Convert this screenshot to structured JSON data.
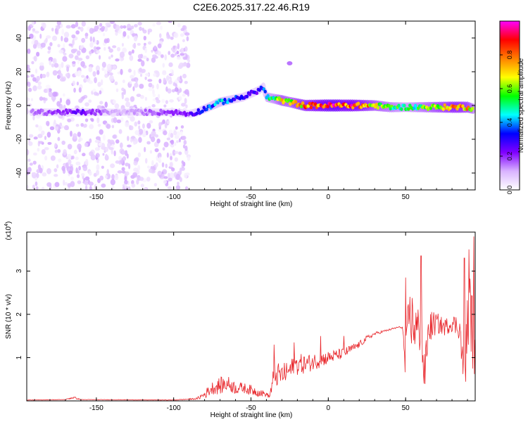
{
  "figure": {
    "title": "C2E6.2025.317.22.46.R19"
  },
  "chart_data": [
    {
      "type": "heatmap",
      "xlabel": "Height of straight line (km)",
      "ylabel": "Frequency (Hz)",
      "xlim": [
        -195,
        95
      ],
      "ylim": [
        -50,
        50
      ],
      "xticks": [
        -150,
        -100,
        -50,
        0,
        50
      ],
      "yticks": [
        -40,
        -20,
        0,
        20,
        40
      ],
      "colorbar": {
        "label": "Normalized spectral amplitude",
        "range": [
          0,
          1
        ],
        "ticks": [
          0.0,
          0.2,
          0.4,
          0.6,
          0.8
        ],
        "colormap": [
          "#ffffff",
          "#d9b3ff",
          "#8000ff",
          "#0000ff",
          "#00ffff",
          "#00ff00",
          "#ffff00",
          "#ff8000",
          "#ff0000",
          "#ff00ff"
        ]
      },
      "ridge": {
        "x": [
          -192,
          -175,
          -160,
          -150,
          -140,
          -130,
          -120,
          -110,
          -100,
          -90,
          -85,
          -80,
          -75,
          -70,
          -65,
          -60,
          -55,
          -50,
          -45,
          -42,
          -40,
          -35,
          -30,
          -25,
          -20,
          -15,
          -10,
          -5,
          0,
          5,
          10,
          15,
          20,
          30,
          40,
          45,
          50,
          55,
          60,
          65,
          70,
          75,
          80,
          85,
          90,
          94
        ],
        "frequency": [
          -4,
          -4,
          -4,
          -4,
          -4,
          -4,
          -4,
          -4,
          -4,
          -5,
          -4,
          -2,
          0,
          2,
          3,
          4,
          5,
          7,
          9,
          11,
          5,
          4,
          3,
          2,
          1,
          0,
          0,
          0,
          0,
          0,
          0,
          0,
          0,
          0,
          -1,
          -1,
          -1,
          -1,
          -1,
          -1,
          -1,
          -1,
          -1,
          -1,
          -1,
          -2
        ],
        "amplitude": [
          0.15,
          0.2,
          0.25,
          0.2,
          0.12,
          0.12,
          0.15,
          0.18,
          0.2,
          0.22,
          0.3,
          0.35,
          0.4,
          0.45,
          0.4,
          0.35,
          0.35,
          0.3,
          0.3,
          0.35,
          0.5,
          0.55,
          0.7,
          0.65,
          0.75,
          0.8,
          0.85,
          0.9,
          0.95,
          0.95,
          0.9,
          0.9,
          0.85,
          0.7,
          0.6,
          0.55,
          0.5,
          0.55,
          0.6,
          0.65,
          0.7,
          0.75,
          0.8,
          0.8,
          0.75,
          0.6
        ]
      },
      "noise_region": {
        "x_range": [
          -195,
          -90
        ],
        "frequency_range": [
          -50,
          50
        ],
        "amplitude": 0.05
      },
      "isolated_blip": {
        "x": -25,
        "frequency": 25,
        "amplitude": 0.1
      }
    },
    {
      "type": "line",
      "xlabel": "Height of straight line (km)",
      "ylabel": "SNR (10 * v/v)",
      "y_multiplier_label": "(x10",
      "y_multiplier_exponent": "4",
      "y_multiplier_close": ")",
      "xlim": [
        -195,
        95
      ],
      "ylim": [
        0,
        3.9
      ],
      "xticks": [
        -150,
        -100,
        -50,
        0,
        50
      ],
      "yticks": [
        1,
        2,
        3
      ],
      "grid": false,
      "series": [
        {
          "color": "#e8262b",
          "x": [
            -195,
            -170,
            -165,
            -160,
            -100,
            -85,
            -80,
            -75,
            -70,
            -65,
            -60,
            -55,
            -50,
            -45,
            -40,
            -38,
            -35,
            -30,
            -25,
            -20,
            -15,
            -10,
            -5,
            0,
            5,
            10,
            15,
            20,
            25,
            30,
            35,
            40,
            45,
            48,
            50,
            52,
            55,
            58,
            60,
            62,
            65,
            70,
            75,
            80,
            85,
            88,
            90,
            92,
            94
          ],
          "y": [
            0.02,
            0.03,
            0.08,
            0.03,
            0.02,
            0.05,
            0.15,
            0.3,
            0.35,
            0.4,
            0.3,
            0.3,
            0.25,
            0.2,
            0.15,
            0.1,
            0.6,
            0.6,
            0.7,
            0.85,
            0.85,
            0.9,
            0.95,
            1.0,
            1.05,
            1.1,
            1.2,
            1.3,
            1.45,
            1.55,
            1.6,
            1.65,
            1.7,
            1.7,
            0.7,
            2.0,
            1.8,
            1.6,
            1.8,
            0.5,
            1.7,
            1.8,
            1.7,
            1.8,
            1.7,
            0.4,
            1.8,
            2.2,
            1.2
          ],
          "noise": [
            0.005,
            0.005,
            0.03,
            0.005,
            0.005,
            0.02,
            0.1,
            0.15,
            0.2,
            0.18,
            0.15,
            0.12,
            0.12,
            0.1,
            0.05,
            0.05,
            0.3,
            0.25,
            0.25,
            0.25,
            0.22,
            0.2,
            0.18,
            0.15,
            0.14,
            0.12,
            0.1,
            0.08,
            0.06,
            0.04,
            0.03,
            0.02,
            0.02,
            0.02,
            0.6,
            0.6,
            0.7,
            0.6,
            0.7,
            0.5,
            0.4,
            0.25,
            0.2,
            0.2,
            0.3,
            0.5,
            0.7,
            0.9,
            0.9
          ],
          "peaks": [
            {
              "x": -35,
              "y": 1.3
            },
            {
              "x": -22,
              "y": 1.35
            },
            {
              "x": -5,
              "y": 1.5
            },
            {
              "x": 10,
              "y": 1.5
            },
            {
              "x": 50,
              "y": 2.85
            },
            {
              "x": 60,
              "y": 3.35
            },
            {
              "x": 88,
              "y": 3.3
            },
            {
              "x": 91,
              "y": 3.5
            },
            {
              "x": 94,
              "y": 3.8
            }
          ]
        }
      ]
    }
  ]
}
